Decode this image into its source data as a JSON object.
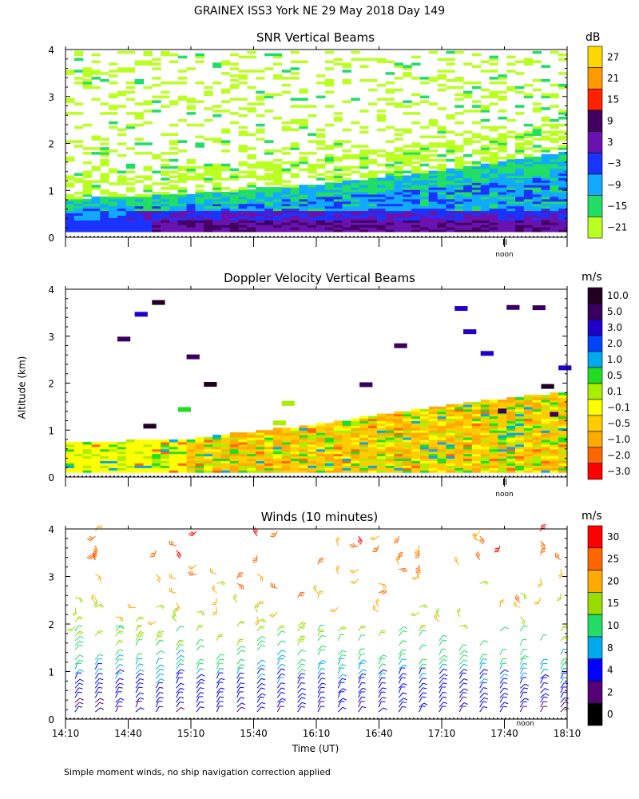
{
  "header": {
    "title": "GRAINEX ISS3 York NE  29 May 2018 Day 149"
  },
  "axes": {
    "ylabel": "Altitude (km)",
    "xlabel": "Time (UT)",
    "noon_label": "noon",
    "y_ticks": [
      "0",
      "1",
      "2",
      "3",
      "4"
    ]
  },
  "footnote": "Simple moment winds, no ship navigation correction applied",
  "panels": {
    "snr": {
      "title": "SNR Vertical Beams",
      "unit": "dB"
    },
    "doppler": {
      "title": "Doppler Velocity Vertical Beams",
      "unit": "m/s"
    },
    "winds": {
      "title": "Winds (10 minutes)",
      "unit": "m/s"
    }
  },
  "chart_data": [
    {
      "type": "heatmap",
      "title": "SNR Vertical Beams",
      "ylabel": "Altitude (km)",
      "ylim": [
        0,
        4
      ],
      "x_range": [
        "14:10",
        "18:10"
      ],
      "colorbar": {
        "unit": "dB",
        "labels": [
          "27",
          "21",
          "15",
          "9",
          "3",
          "−3",
          "−9",
          "−15",
          "−21"
        ],
        "colors": [
          "#ffd700",
          "#ff9900",
          "#ff2200",
          "#440060",
          "#6a12b0",
          "#1a33ff",
          "#12aaff",
          "#22dd66",
          "#bbff22"
        ]
      },
      "profile": [
        {
          "alt_km": 0.2,
          "snr_db": 9
        },
        {
          "alt_km": 0.4,
          "snr_db": 3
        },
        {
          "alt_km": 0.7,
          "snr_db": -9
        },
        {
          "alt_km": 1.0,
          "snr_db": -15
        },
        {
          "alt_km": 2.0,
          "snr_db": -21
        },
        {
          "alt_km": 3.5,
          "snr_db": -21
        }
      ],
      "boundary_layer_top_km": [
        {
          "time": "14:10",
          "value": 0.8
        },
        {
          "time": "15:10",
          "value": 0.9
        },
        {
          "time": "16:10",
          "value": 1.1
        },
        {
          "time": "17:10",
          "value": 1.4
        },
        {
          "time": "18:10",
          "value": 1.8
        }
      ]
    },
    {
      "type": "heatmap",
      "title": "Doppler Velocity Vertical Beams",
      "ylabel": "Altitude (km)",
      "ylim": [
        0,
        4
      ],
      "x_range": [
        "14:10",
        "18:10"
      ],
      "colorbar": {
        "unit": "m/s",
        "labels": [
          "10.0",
          "5.0",
          "3.0",
          "2.0",
          "1.0",
          "0.5",
          "0.1",
          "−0.1",
          "−0.5",
          "−1.0",
          "−2.0",
          "−3.0"
        ],
        "colors": [
          "#220022",
          "#3a0060",
          "#2200cc",
          "#0044ff",
          "#00aaee",
          "#22dd22",
          "#aaee00",
          "#ffff00",
          "#ffcc00",
          "#ffaa00",
          "#ff6600",
          "#ff0000"
        ]
      },
      "mixed_layer_top_km": [
        {
          "time": "14:10",
          "value": 0.7
        },
        {
          "time": "15:10",
          "value": 0.8
        },
        {
          "time": "16:10",
          "value": 1.1
        },
        {
          "time": "17:10",
          "value": 1.5
        },
        {
          "time": "18:10",
          "value": 1.8
        }
      ]
    },
    {
      "type": "scatter",
      "title": "Winds (10 minutes)",
      "xlabel": "Time (UT)",
      "ylabel": "Altitude (km)",
      "ylim": [
        0,
        4
      ],
      "x_ticks": [
        "14:10",
        "14:40",
        "15:10",
        "15:40",
        "16:10",
        "16:40",
        "17:10",
        "17:40",
        "18:10"
      ],
      "colorbar": {
        "unit": "m/s",
        "labels": [
          "30",
          "25",
          "20",
          "15",
          "10",
          "8",
          "4",
          "2",
          "0"
        ],
        "colors": [
          "#ff0000",
          "#ff6600",
          "#ffaa00",
          "#99dd00",
          "#22dd66",
          "#00aaee",
          "#0000ff",
          "#550077",
          "#000000"
        ]
      },
      "wind_speed_profile": [
        {
          "alt_km": 0.2,
          "speed_ms": 4
        },
        {
          "alt_km": 0.6,
          "speed_ms": 6
        },
        {
          "alt_km": 1.0,
          "speed_ms": 9
        },
        {
          "alt_km": 1.5,
          "speed_ms": 13
        },
        {
          "alt_km": 2.5,
          "speed_ms": 22
        },
        {
          "alt_km": 3.5,
          "speed_ms": 27
        }
      ]
    }
  ]
}
